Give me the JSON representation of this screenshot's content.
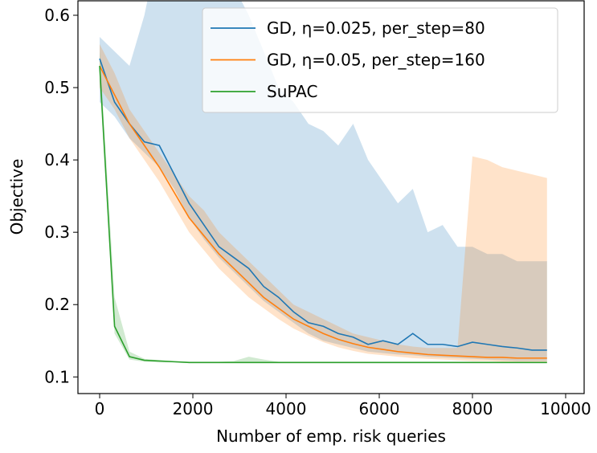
{
  "chart_data": {
    "type": "line",
    "xlabel": "Number of emp. risk queries",
    "ylabel": "Objective",
    "x": [
      0,
      320,
      640,
      960,
      1280,
      1600,
      1920,
      2240,
      2560,
      2880,
      3200,
      3520,
      3840,
      4160,
      4480,
      4800,
      5120,
      5440,
      5760,
      6080,
      6400,
      6720,
      7040,
      7360,
      7680,
      8000,
      8320,
      8640,
      8960,
      9280,
      9600
    ],
    "xlim": [
      -466,
      10397
    ],
    "ylim": [
      0.077,
      0.62
    ],
    "xticks": [
      0,
      2000,
      4000,
      6000,
      8000,
      10000
    ],
    "yticks": [
      0.1,
      0.2,
      0.3,
      0.4,
      0.5,
      0.6
    ],
    "legend": "upper right",
    "series": [
      {
        "name": "GD, η=0.025, per_step=80",
        "color": "#1f77b4",
        "values": [
          0.54,
          0.48,
          0.45,
          0.425,
          0.42,
          0.38,
          0.34,
          0.31,
          0.28,
          0.265,
          0.25,
          0.225,
          0.21,
          0.19,
          0.175,
          0.17,
          0.16,
          0.155,
          0.145,
          0.15,
          0.145,
          0.16,
          0.145,
          0.145,
          0.142,
          0.148,
          0.145,
          0.142,
          0.14,
          0.137,
          0.137
        ],
        "lower": [
          0.48,
          0.46,
          0.43,
          0.41,
          0.39,
          0.36,
          0.32,
          0.29,
          0.265,
          0.245,
          0.225,
          0.205,
          0.19,
          0.175,
          0.16,
          0.15,
          0.145,
          0.14,
          0.135,
          0.133,
          0.131,
          0.13,
          0.128,
          0.127,
          0.126,
          0.125,
          0.124,
          0.123,
          0.122,
          0.122,
          0.122
        ],
        "upper": [
          0.57,
          0.55,
          0.53,
          0.6,
          0.7,
          0.75,
          0.8,
          0.75,
          0.7,
          0.64,
          0.6,
          0.55,
          0.5,
          0.48,
          0.45,
          0.44,
          0.42,
          0.45,
          0.4,
          0.37,
          0.34,
          0.36,
          0.3,
          0.31,
          0.28,
          0.28,
          0.27,
          0.27,
          0.26,
          0.26,
          0.26
        ]
      },
      {
        "name": "GD, η=0.05, per_step=160",
        "color": "#ff7f0e",
        "values": [
          0.53,
          0.49,
          0.45,
          0.42,
          0.39,
          0.355,
          0.32,
          0.295,
          0.27,
          0.25,
          0.23,
          0.21,
          0.195,
          0.18,
          0.17,
          0.16,
          0.152,
          0.146,
          0.141,
          0.138,
          0.135,
          0.133,
          0.131,
          0.13,
          0.129,
          0.128,
          0.127,
          0.127,
          0.126,
          0.126,
          0.126
        ],
        "lower": [
          0.5,
          0.47,
          0.43,
          0.4,
          0.37,
          0.335,
          0.3,
          0.275,
          0.25,
          0.23,
          0.21,
          0.195,
          0.18,
          0.167,
          0.157,
          0.148,
          0.141,
          0.136,
          0.132,
          0.13,
          0.128,
          0.126,
          0.125,
          0.124,
          0.123,
          0.122,
          0.122,
          0.121,
          0.121,
          0.121,
          0.121
        ],
        "upper": [
          0.56,
          0.52,
          0.47,
          0.44,
          0.41,
          0.38,
          0.35,
          0.33,
          0.3,
          0.28,
          0.26,
          0.24,
          0.22,
          0.2,
          0.19,
          0.18,
          0.17,
          0.16,
          0.155,
          0.15,
          0.145,
          0.142,
          0.14,
          0.14,
          0.14,
          0.405,
          0.4,
          0.39,
          0.385,
          0.38,
          0.375
        ]
      },
      {
        "name": "SuPAC",
        "color": "#2ca02c",
        "values": [
          0.53,
          0.17,
          0.128,
          0.123,
          0.122,
          0.121,
          0.12,
          0.12,
          0.12,
          0.12,
          0.12,
          0.12,
          0.12,
          0.12,
          0.12,
          0.12,
          0.12,
          0.12,
          0.12,
          0.12,
          0.12,
          0.12,
          0.12,
          0.12,
          0.12,
          0.12,
          0.12,
          0.12,
          0.12,
          0.12,
          0.12
        ],
        "lower": [
          0.51,
          0.16,
          0.124,
          0.121,
          0.12,
          0.12,
          0.119,
          0.119,
          0.119,
          0.119,
          0.119,
          0.119,
          0.119,
          0.119,
          0.119,
          0.119,
          0.119,
          0.119,
          0.119,
          0.119,
          0.119,
          0.119,
          0.119,
          0.119,
          0.119,
          0.119,
          0.119,
          0.119,
          0.119,
          0.119,
          0.119
        ],
        "upper": [
          0.55,
          0.21,
          0.135,
          0.125,
          0.123,
          0.122,
          0.121,
          0.121,
          0.121,
          0.122,
          0.128,
          0.124,
          0.121,
          0.121,
          0.121,
          0.121,
          0.121,
          0.121,
          0.121,
          0.121,
          0.121,
          0.121,
          0.121,
          0.121,
          0.121,
          0.121,
          0.121,
          0.121,
          0.121,
          0.121,
          0.121
        ]
      }
    ]
  }
}
